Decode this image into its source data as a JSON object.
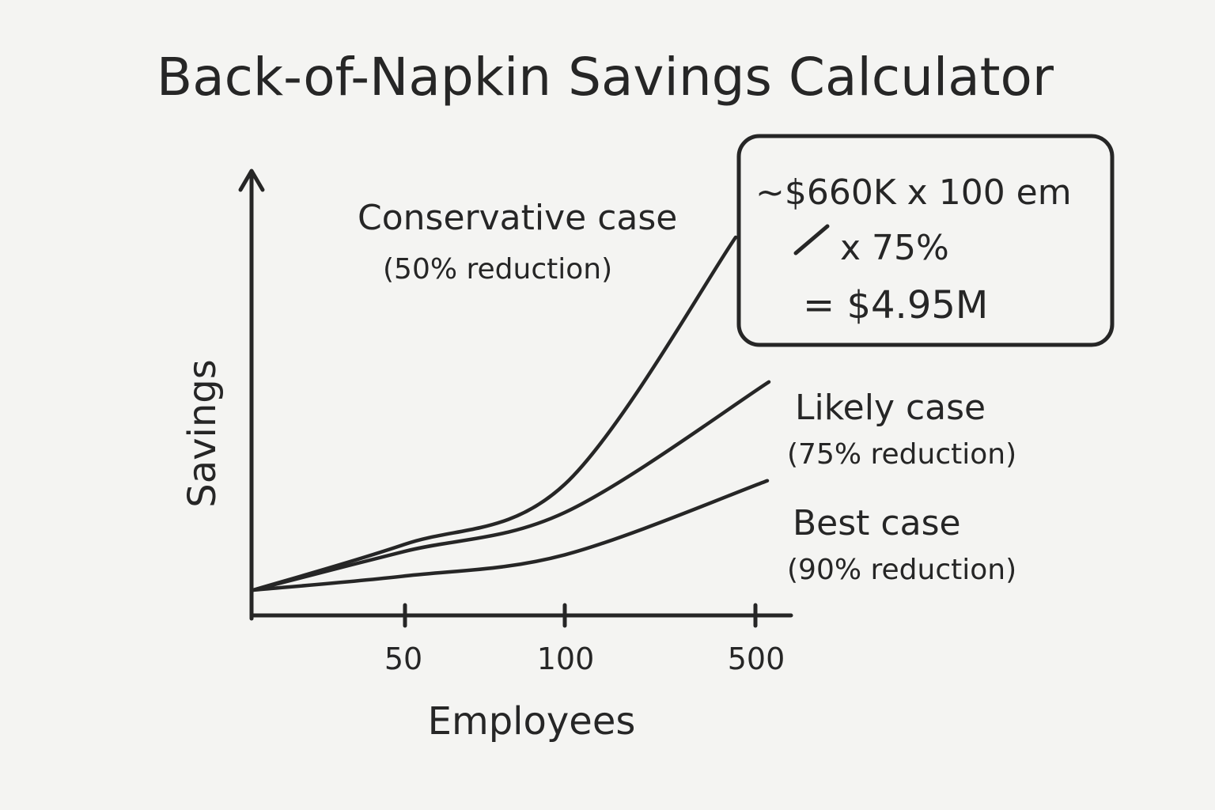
{
  "chart_data": {
    "type": "line",
    "title": "Back-of-Napkin Savings Calculator",
    "xlabel": "Employees",
    "ylabel": "Savings",
    "x_ticks": [
      "50",
      "100",
      "500"
    ],
    "series": [
      {
        "name": "Conservative case",
        "note": "(50% reduction)",
        "values": [
          0,
          0.13,
          0.3,
          1.0
        ]
      },
      {
        "name": "Likely case",
        "note": "(75% reduction)",
        "values": [
          0,
          0.11,
          0.22,
          0.59
        ]
      },
      {
        "name": "Best case",
        "note": "(90% reduction)",
        "values": [
          0,
          0.04,
          0.1,
          0.31
        ]
      }
    ],
    "x": [
      0,
      50,
      100,
      500
    ],
    "grid": false,
    "annotation": {
      "lines": [
        "~$660K x 100 em",
        "x 75%",
        "= $4.95M"
      ]
    }
  }
}
